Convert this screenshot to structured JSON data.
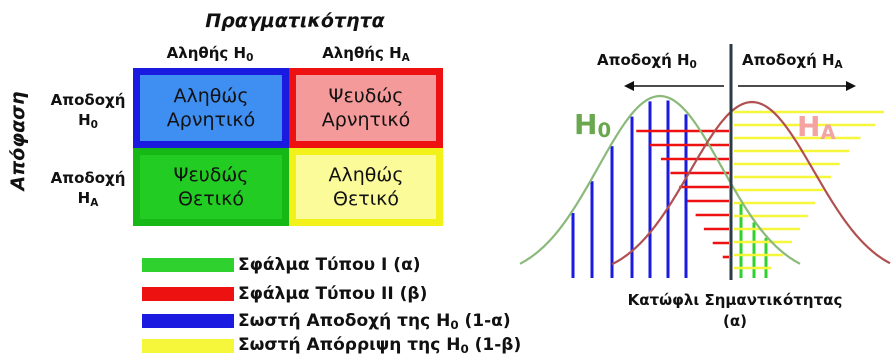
{
  "matrix": {
    "reality_title": "Πραγματικότητα",
    "decision_title": "Απόφαση",
    "col_true_h0": {
      "text": "Αληθής H",
      "sub": "0"
    },
    "col_true_ha": {
      "text": "Αληθής H",
      "sub": "A"
    },
    "row_accept_h0": {
      "text": "Αποδοχή",
      "var": "H",
      "sub": "0"
    },
    "row_accept_ha": {
      "text": "Αποδοχή",
      "var": "H",
      "sub": "A"
    },
    "cells": {
      "tn": {
        "line1": "Αληθώς",
        "line2": "Αρνητικό",
        "fill": "#3f8ff2",
        "border": "#1a1ae0"
      },
      "fn": {
        "line1": "Ψευδώς",
        "line2": "Αρνητικό",
        "fill": "#f59a9a",
        "border": "#ee1111"
      },
      "fp": {
        "line1": "Ψευδώς",
        "line2": "Θετικό",
        "fill": "#22cc22",
        "border": "#16b816"
      },
      "tp": {
        "line1": "Αληθώς",
        "line2": "Θετικό",
        "fill": "#fbfb9a",
        "border": "#f2f21a"
      }
    }
  },
  "legend": [
    {
      "text": "Σφάλμα Τύπου I (α)",
      "sub": "",
      "after": "",
      "color": "#2fd12f"
    },
    {
      "text": "Σφάλμα Τύπου II (β)",
      "sub": "",
      "after": "",
      "color": "#ee1111"
    },
    {
      "text": "Σωστή Αποδοχή της H",
      "sub": "0",
      "after": " (1-α)",
      "color": "#1a1ae0"
    },
    {
      "text": "Σωστή Απόρριψη της H",
      "sub": "0",
      "after": " (1-β)",
      "color": "#f6f63a"
    }
  ],
  "distribution": {
    "accept_h0": {
      "text": "Αποδοχή H",
      "sub": "0"
    },
    "accept_ha": {
      "text": "Αποδοχή H",
      "sub": "A"
    },
    "h0_label": {
      "text": "H",
      "sub": "0",
      "color": "#6aa84f"
    },
    "ha_label": {
      "text": "H",
      "sub": "A",
      "color": "#f4a3a3"
    },
    "threshold_line1": "Κατώφλι Σημαντικότητας",
    "threshold_line2": "(α)",
    "h0_curve_color": "#8ab97a",
    "ha_curve_color": "#b05050",
    "threshold_color": "#2b3a47"
  }
}
